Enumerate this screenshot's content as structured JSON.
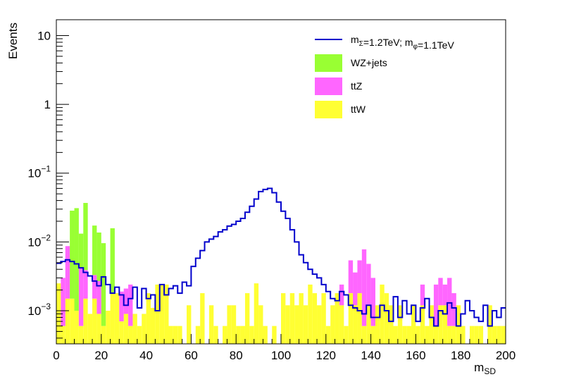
{
  "chart_data": {
    "type": "bar",
    "xlabel": "m",
    "xlabel_sub": "SD",
    "ylabel": "Events",
    "xlim": [
      0,
      200
    ],
    "ylim": [
      0.00033,
      17
    ],
    "yscale": "log",
    "bin_width": 2,
    "stacked_histogram": true,
    "grid": false,
    "legend_position": "top-right",
    "x_ticks": [
      "0",
      "20",
      "40",
      "60",
      "80",
      "100",
      "120",
      "140",
      "160",
      "180",
      "200"
    ],
    "y_ticks": [
      {
        "value": 10,
        "base": "10",
        "exp": ""
      },
      {
        "value": 1,
        "base": "1",
        "exp": ""
      },
      {
        "value": 0.1,
        "base": "10",
        "exp": "−1"
      },
      {
        "value": 0.01,
        "base": "10",
        "exp": "−2"
      },
      {
        "value": 0.001,
        "base": "10",
        "exp": "−3"
      }
    ],
    "stack": [
      {
        "name": "ttW",
        "color": "#ffff33",
        "bins": [
          {
            "x0": 0,
            "y": 0.0025
          },
          {
            "x0": 2,
            "y": 0.0006
          },
          {
            "x0": 4,
            "y": 0.0015
          },
          {
            "x0": 6,
            "y": 0.0015
          },
          {
            "x0": 8,
            "y": 0.001
          },
          {
            "x0": 10,
            "y": 0.0006
          },
          {
            "x0": 12,
            "y": 0.0015
          },
          {
            "x0": 14,
            "y": 0.0009
          },
          {
            "x0": 16,
            "y": 0.0015
          },
          {
            "x0": 18,
            "y": 0.0009
          },
          {
            "x0": 20,
            "y": 0.0006
          },
          {
            "x0": 22,
            "y": 0.001
          },
          {
            "x0": 24,
            "y": 0.0018
          },
          {
            "x0": 26,
            "y": 0.0018
          },
          {
            "x0": 28,
            "y": 0.0007
          },
          {
            "x0": 30,
            "y": 0.0009
          },
          {
            "x0": 32,
            "y": 0.0006
          },
          {
            "x0": 34,
            "y": 0.0009
          },
          {
            "x0": 36,
            "y": 0.0006
          },
          {
            "x0": 38,
            "y": 0.0009
          },
          {
            "x0": 40,
            "y": 0.0018
          },
          {
            "x0": 42,
            "y": 0.0011
          },
          {
            "x0": 44,
            "y": 0.0024
          },
          {
            "x0": 46,
            "y": 0.0024
          },
          {
            "x0": 48,
            "y": 0.0024
          },
          {
            "x0": 50,
            "y": 0.0006
          },
          {
            "x0": 52,
            "y": 0.0006
          },
          {
            "x0": 54,
            "y": 0.0006
          },
          {
            "x0": 58,
            "y": 0.0012
          },
          {
            "x0": 62,
            "y": 0.0006
          },
          {
            "x0": 64,
            "y": 0.0018
          },
          {
            "x0": 68,
            "y": 0.0012
          },
          {
            "x0": 70,
            "y": 0.0006
          },
          {
            "x0": 74,
            "y": 0.0006
          },
          {
            "x0": 76,
            "y": 0.0012
          },
          {
            "x0": 78,
            "y": 0.0012
          },
          {
            "x0": 80,
            "y": 0.0006
          },
          {
            "x0": 82,
            "y": 0.0006
          },
          {
            "x0": 84,
            "y": 0.0018
          },
          {
            "x0": 86,
            "y": 0.0006
          },
          {
            "x0": 88,
            "y": 0.0025
          },
          {
            "x0": 90,
            "y": 0.0012
          },
          {
            "x0": 92,
            "y": 0.0006
          },
          {
            "x0": 96,
            "y": 0.0006
          },
          {
            "x0": 100,
            "y": 0.0018
          },
          {
            "x0": 102,
            "y": 0.0012
          },
          {
            "x0": 104,
            "y": 0.0018
          },
          {
            "x0": 106,
            "y": 0.0012
          },
          {
            "x0": 108,
            "y": 0.0018
          },
          {
            "x0": 110,
            "y": 0.0012
          },
          {
            "x0": 112,
            "y": 0.0024
          },
          {
            "x0": 114,
            "y": 0.0018
          },
          {
            "x0": 116,
            "y": 0.0012
          },
          {
            "x0": 118,
            "y": 0.0018
          },
          {
            "x0": 120,
            "y": 0.0006
          },
          {
            "x0": 122,
            "y": 0.0012
          },
          {
            "x0": 124,
            "y": 0.0018
          },
          {
            "x0": 126,
            "y": 0.0012
          },
          {
            "x0": 128,
            "y": 0.0006
          },
          {
            "x0": 130,
            "y": 0.0018
          },
          {
            "x0": 132,
            "y": 0.0012
          },
          {
            "x0": 134,
            "y": 0.0018
          },
          {
            "x0": 136,
            "y": 0.0006
          },
          {
            "x0": 138,
            "y": 0.0012
          },
          {
            "x0": 140,
            "y": 0.0006
          },
          {
            "x0": 142,
            "y": 0.0012
          },
          {
            "x0": 144,
            "y": 0.0024
          },
          {
            "x0": 146,
            "y": 0.0018
          },
          {
            "x0": 148,
            "y": 0.0012
          },
          {
            "x0": 150,
            "y": 0.0006
          },
          {
            "x0": 152,
            "y": 0.0012
          },
          {
            "x0": 154,
            "y": 0.0006
          },
          {
            "x0": 156,
            "y": 0.0006
          },
          {
            "x0": 158,
            "y": 0.0012
          },
          {
            "x0": 160,
            "y": 0.0006
          },
          {
            "x0": 162,
            "y": 0.0012
          },
          {
            "x0": 164,
            "y": 0.0006
          },
          {
            "x0": 166,
            "y": 0.0012
          },
          {
            "x0": 168,
            "y": 0.0006
          },
          {
            "x0": 170,
            "y": 0.0012
          },
          {
            "x0": 172,
            "y": 0.0012
          },
          {
            "x0": 174,
            "y": 0.0006
          },
          {
            "x0": 176,
            "y": 0.0006
          },
          {
            "x0": 178,
            "y": 0.0012
          },
          {
            "x0": 180,
            "y": 0.0006
          },
          {
            "x0": 184,
            "y": 0.0006
          },
          {
            "x0": 186,
            "y": 0.0006
          },
          {
            "x0": 188,
            "y": 0.0006
          },
          {
            "x0": 192,
            "y": 0.0012
          },
          {
            "x0": 194,
            "y": 0.0006
          },
          {
            "x0": 196,
            "y": 0.0006
          },
          {
            "x0": 198,
            "y": 0.0006
          }
        ]
      },
      {
        "name": "ttZ",
        "color": "#ff66ff",
        "bins": [
          {
            "x0": 2,
            "y": 0.0024
          },
          {
            "x0": 4,
            "y": 0.0072
          },
          {
            "x0": 10,
            "y": 0.0036
          },
          {
            "x0": 12,
            "y": 0.0024
          },
          {
            "x0": 16,
            "y": 0.0018
          },
          {
            "x0": 18,
            "y": 0.0018
          },
          {
            "x0": 28,
            "y": 0.0012
          },
          {
            "x0": 30,
            "y": 0.0012
          },
          {
            "x0": 32,
            "y": 0.0018
          },
          {
            "x0": 126,
            "y": 0.0012
          },
          {
            "x0": 130,
            "y": 0.0036
          },
          {
            "x0": 132,
            "y": 0.0024
          },
          {
            "x0": 134,
            "y": 0.0036
          },
          {
            "x0": 136,
            "y": 0.0072
          },
          {
            "x0": 138,
            "y": 0.0036
          },
          {
            "x0": 140,
            "y": 0.0024
          },
          {
            "x0": 162,
            "y": 0.0012
          },
          {
            "x0": 168,
            "y": 0.0018
          },
          {
            "x0": 170,
            "y": 0.0018
          },
          {
            "x0": 172,
            "y": 0.0012
          },
          {
            "x0": 174,
            "y": 0.0024
          },
          {
            "x0": 176,
            "y": 0.0012
          }
        ]
      },
      {
        "name": "WZ+jets",
        "color": "#99ff33",
        "bins": [
          {
            "x0": 6,
            "y": 0.027
          },
          {
            "x0": 8,
            "y": 0.03
          },
          {
            "x0": 10,
            "y": 0.009
          },
          {
            "x0": 12,
            "y": 0.033
          },
          {
            "x0": 16,
            "y": 0.014
          },
          {
            "x0": 18,
            "y": 0.011
          },
          {
            "x0": 20,
            "y": 0.009
          },
          {
            "x0": 24,
            "y": 0.014
          }
        ]
      }
    ],
    "signal": {
      "name": "m_{Σ}=1.2TeV; m_{φ}=1.1TeV",
      "color": "#0000cc",
      "values": [
        0.0049,
        0.0052,
        0.0055,
        0.0052,
        0.0048,
        0.0042,
        0.0036,
        0.0032,
        0.0027,
        0.0023,
        0.0031,
        0.0024,
        0.0018,
        0.0022,
        0.0017,
        0.0012,
        0.0015,
        0.0022,
        0.0011,
        0.0021,
        0.0015,
        0.0017,
        0.001,
        0.0024,
        0.0017,
        0.0021,
        0.0023,
        0.0018,
        0.0026,
        0.0023,
        0.0044,
        0.0058,
        0.0075,
        0.01,
        0.011,
        0.012,
        0.014,
        0.015,
        0.017,
        0.018,
        0.02,
        0.022,
        0.027,
        0.033,
        0.042,
        0.054,
        0.058,
        0.06,
        0.052,
        0.038,
        0.028,
        0.022,
        0.015,
        0.01,
        0.0065,
        0.005,
        0.004,
        0.0034,
        0.003,
        0.0024,
        0.0019,
        0.0015,
        0.0014,
        0.0019,
        0.0017,
        0.0012,
        0.0011,
        0.001,
        0.0009,
        0.0012,
        0.0008,
        0.0008,
        0.0012,
        0.001,
        0.0007,
        0.0016,
        0.0008,
        0.0014,
        0.0009,
        0.0012,
        0.0007,
        0.0011,
        0.0015,
        0.0008,
        0.0006,
        0.001,
        0.0009,
        0.0013,
        0.0011,
        0.0006,
        0.0009,
        0.0014,
        0.001,
        0.0008,
        0.0007,
        0.0012,
        0.0006,
        0.001,
        0.0008,
        0.0011
      ]
    },
    "legend": [
      {
        "name": "m_{Σ}=1.2TeV; m_{φ}=1.1TeV",
        "kind": "line",
        "color": "#0000cc"
      },
      {
        "name": "WZ+jets",
        "kind": "fill",
        "color": "#99ff33"
      },
      {
        "name": "ttZ",
        "kind": "fill",
        "color": "#ff66ff"
      },
      {
        "name": "ttW",
        "kind": "fill",
        "color": "#ffff33"
      }
    ]
  }
}
